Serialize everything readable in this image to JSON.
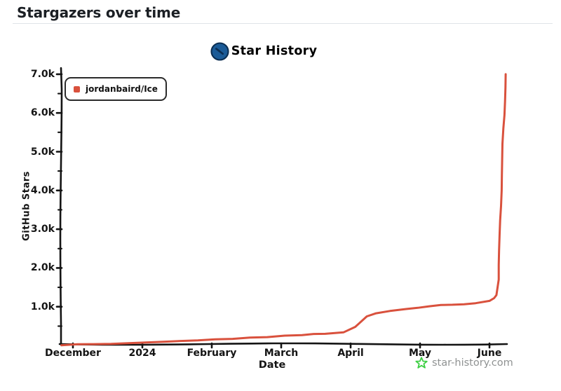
{
  "page": {
    "title": "Stargazers over time"
  },
  "brand": {
    "name": "Star History",
    "logo_icon": "clock-icon",
    "logo_color": "#1b5b97",
    "logo_hands_color": "#0b2e52"
  },
  "legend": {
    "series_label": "jordanbaird/Ice",
    "marker_color": "#d9513d"
  },
  "footer": {
    "site": "star-history.com",
    "star_icon_color": "#3ecf44",
    "text_color": "#8f9292"
  },
  "chart_data": {
    "type": "line",
    "title": "Star History",
    "xlabel": "Date",
    "ylabel": "GitHub Stars",
    "grid": false,
    "legend_position": "top-left",
    "line_color": "#d9513d",
    "axis_color": "#141414",
    "ylim": [
      0,
      7000
    ],
    "y_tick_values": [
      1000,
      2000,
      3000,
      4000,
      5000,
      6000,
      7000
    ],
    "y_tick_labels": [
      "1.0k",
      "2.0k",
      "3.0k",
      "4.0k",
      "5.0k",
      "6.0k",
      "7.0k"
    ],
    "x_tick_labels": [
      "December",
      "2024",
      "February",
      "March",
      "April",
      "May",
      "June"
    ],
    "series": [
      {
        "name": "jordanbaird/Ice",
        "points": [
          [
            "2023-11-26",
            5
          ],
          [
            "2023-12-10",
            35
          ],
          [
            "2023-12-25",
            60
          ],
          [
            "2024-01-10",
            95
          ],
          [
            "2024-01-25",
            130
          ],
          [
            "2024-02-10",
            170
          ],
          [
            "2024-02-25",
            215
          ],
          [
            "2024-03-10",
            265
          ],
          [
            "2024-03-20",
            300
          ],
          [
            "2024-03-28",
            340
          ],
          [
            "2024-04-03",
            480
          ],
          [
            "2024-04-08",
            750
          ],
          [
            "2024-04-12",
            830
          ],
          [
            "2024-04-18",
            890
          ],
          [
            "2024-04-25",
            940
          ],
          [
            "2024-05-05",
            1010
          ],
          [
            "2024-05-15",
            1050
          ],
          [
            "2024-05-25",
            1090
          ],
          [
            "2024-06-01",
            1150
          ],
          [
            "2024-06-03",
            1220
          ],
          [
            "2024-06-04",
            1300
          ],
          [
            "2024-06-05",
            1700
          ],
          [
            "2024-06-06",
            3600
          ],
          [
            "2024-06-07",
            5600
          ],
          [
            "2024-06-08",
            7000
          ]
        ]
      }
    ]
  }
}
